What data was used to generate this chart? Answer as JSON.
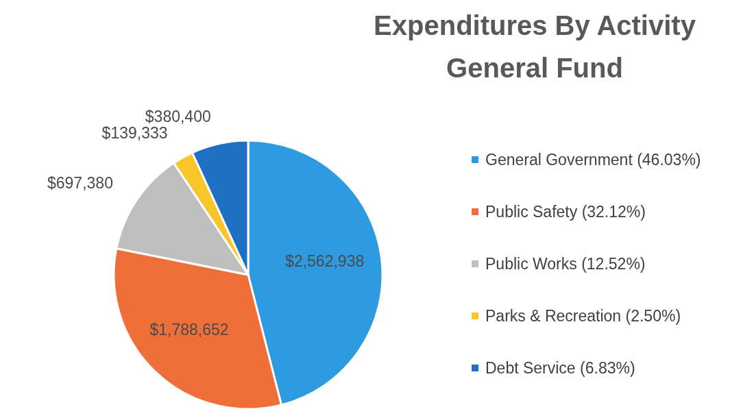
{
  "chart_data": {
    "type": "pie",
    "title": "Expenditures By Activity",
    "subtitle": "General Fund",
    "categories": [
      "General Government (46.03%)",
      "Public Safety (32.12%)",
      "Public Works (12.52%)",
      "Parks & Recreation (2.50%)",
      "Debt Service (6.83%)"
    ],
    "values": [
      2562938,
      1788652,
      697380,
      139333,
      380400
    ],
    "value_labels": [
      "$2,562,938",
      "$1,788,652",
      "$697,380",
      "$139,333",
      "$380,400"
    ],
    "colors": [
      "#2e9be0",
      "#ef6f3b",
      "#bfbfbf",
      "#f8c629",
      "#1f6fc2"
    ],
    "legend": "right"
  }
}
